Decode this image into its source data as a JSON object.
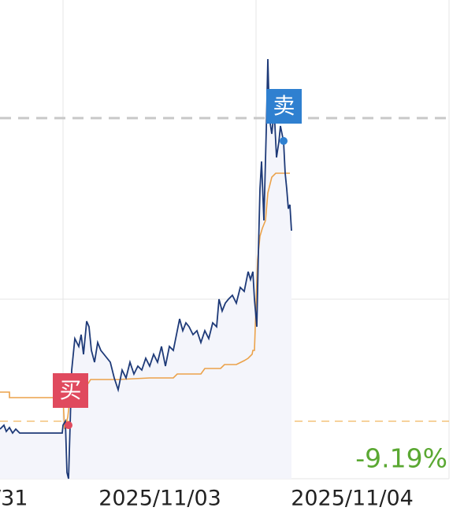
{
  "x_axis": {
    "labels": [
      "/31",
      "2025/11/03",
      "2025/11/04"
    ]
  },
  "markers": {
    "buy": "买",
    "sell": "卖"
  },
  "return_label": "-9.19%"
}
